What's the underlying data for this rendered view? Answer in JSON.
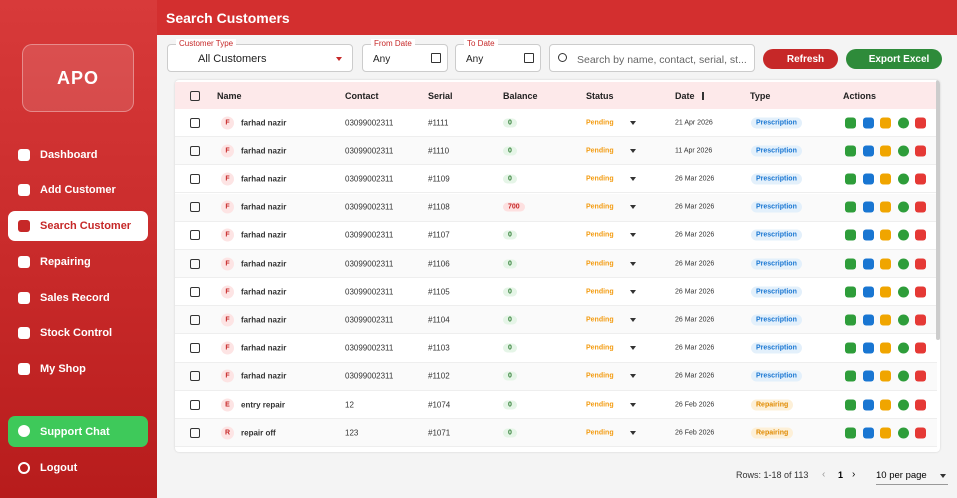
{
  "sidebar": {
    "logo": "APO",
    "nav": [
      "Dashboard",
      "Add Customer",
      "Search Customer",
      "Repairing",
      "Sales Record",
      "Stock Control",
      "My Shop"
    ],
    "support": "Support Chat",
    "logout": "Logout"
  },
  "header": {
    "title": "Search Customers"
  },
  "filters": {
    "customer_type_label": "Customer Type",
    "customer_type": "All Customers",
    "from_label": "From Date",
    "from_value": "Any",
    "to_label": "To Date",
    "to_value": "Any",
    "search_placeholder": "Search by name, contact, serial, st...",
    "refresh": "Refresh",
    "export": "Export Excel"
  },
  "table": {
    "columns": [
      "Name",
      "Contact",
      "Serial",
      "Balance",
      "Status",
      "Date",
      "Type",
      "Actions"
    ],
    "rows": [
      {
        "initial": "F",
        "name": "farhad nazir",
        "contact": "03099002311",
        "serial": "#1111",
        "balance": 0,
        "status": "Pending",
        "date": "21 Apr 2026",
        "type": "Prescription"
      },
      {
        "initial": "F",
        "name": "farhad nazir",
        "contact": "03099002311",
        "serial": "#1110",
        "balance": 0,
        "status": "Pending",
        "date": "11 Apr 2026",
        "type": "Prescription"
      },
      {
        "initial": "F",
        "name": "farhad nazir",
        "contact": "03099002311",
        "serial": "#1109",
        "balance": 0,
        "status": "Pending",
        "date": "26 Mar 2026",
        "type": "Prescription"
      },
      {
        "initial": "F",
        "name": "farhad nazir",
        "contact": "03099002311",
        "serial": "#1108",
        "balance": 700,
        "status": "Pending",
        "date": "26 Mar 2026",
        "type": "Prescription"
      },
      {
        "initial": "F",
        "name": "farhad nazir",
        "contact": "03099002311",
        "serial": "#1107",
        "balance": 0,
        "status": "Pending",
        "date": "26 Mar 2026",
        "type": "Prescription"
      },
      {
        "initial": "F",
        "name": "farhad nazir",
        "contact": "03099002311",
        "serial": "#1106",
        "balance": 0,
        "status": "Pending",
        "date": "26 Mar 2026",
        "type": "Prescription"
      },
      {
        "initial": "F",
        "name": "farhad nazir",
        "contact": "03099002311",
        "serial": "#1105",
        "balance": 0,
        "status": "Pending",
        "date": "26 Mar 2026",
        "type": "Prescription"
      },
      {
        "initial": "F",
        "name": "farhad nazir",
        "contact": "03099002311",
        "serial": "#1104",
        "balance": 0,
        "status": "Pending",
        "date": "26 Mar 2026",
        "type": "Prescription"
      },
      {
        "initial": "F",
        "name": "farhad nazir",
        "contact": "03099002311",
        "serial": "#1103",
        "balance": 0,
        "status": "Pending",
        "date": "26 Mar 2026",
        "type": "Prescription"
      },
      {
        "initial": "F",
        "name": "farhad nazir",
        "contact": "03099002311",
        "serial": "#1102",
        "balance": 0,
        "status": "Pending",
        "date": "26 Mar 2026",
        "type": "Prescription"
      },
      {
        "initial": "E",
        "name": "entry repair",
        "contact": "12",
        "serial": "#1074",
        "balance": 0,
        "status": "Pending",
        "date": "26 Feb 2026",
        "type": "Repairing"
      },
      {
        "initial": "R",
        "name": "repair off",
        "contact": "123",
        "serial": "#1071",
        "balance": 0,
        "status": "Pending",
        "date": "26 Feb 2026",
        "type": "Repairing"
      }
    ]
  },
  "pagination": {
    "rows_info": "Rows: 1-18 of 113",
    "page": "1",
    "per_page": "10 per page"
  }
}
